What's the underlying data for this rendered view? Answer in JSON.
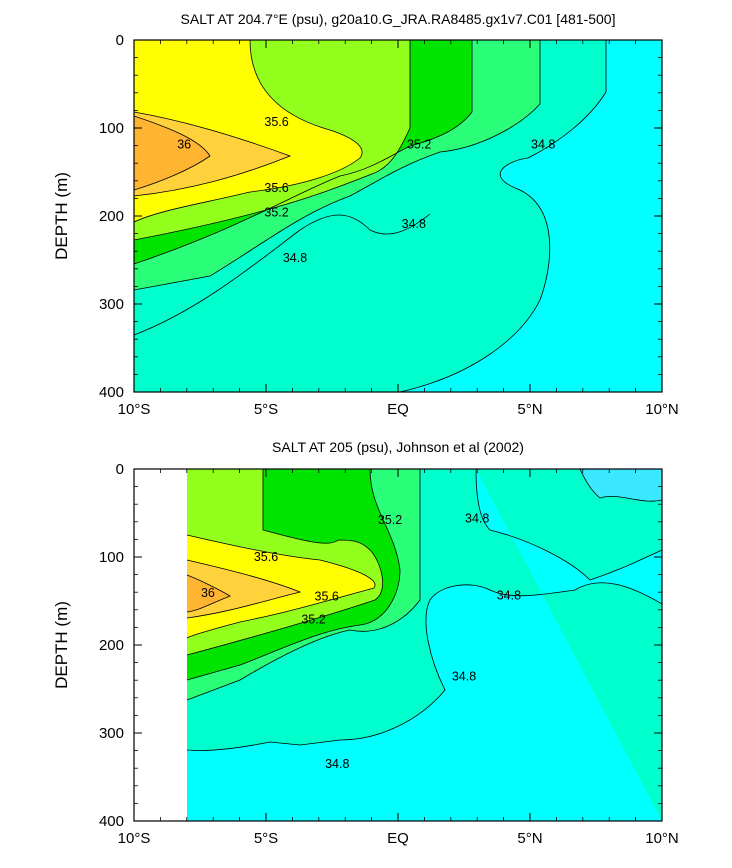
{
  "chart_data": [
    {
      "type": "contour",
      "title": "SALT AT 204.7°E (psu), g20a10.G_JRA.RA8485.gx1v7.C01 [481-500]",
      "ylabel": "DEPTH (m)",
      "xlim": [
        -10,
        10
      ],
      "ylim": [
        400,
        0
      ],
      "xticks": [
        "10°S",
        "5°S",
        "EQ",
        "5°N",
        "10°N"
      ],
      "yticks": [
        "0",
        "100",
        "200",
        "300",
        "400"
      ],
      "contour_labels": [
        {
          "text": "35.6",
          "x": -4.6,
          "y": 93
        },
        {
          "text": "36",
          "x": -8.1,
          "y": 119
        },
        {
          "text": "35.6",
          "x": -4.6,
          "y": 168
        },
        {
          "text": "35.2",
          "x": -4.6,
          "y": 196
        },
        {
          "text": "35.2",
          "x": 0.8,
          "y": 119
        },
        {
          "text": "34.8",
          "x": 5.5,
          "y": 119
        },
        {
          "text": "34.8",
          "x": 0.6,
          "y": 209
        },
        {
          "text": "34.8",
          "x": -3.9,
          "y": 248
        }
      ]
    },
    {
      "type": "contour",
      "title": "SALT AT 205 (psu), Johnson et al (2002)",
      "ylabel": "DEPTH (m)",
      "xlim": [
        -10,
        10
      ],
      "ylim": [
        400,
        0
      ],
      "xticks": [
        "10°S",
        "5°S",
        "EQ",
        "5°N",
        "10°N"
      ],
      "yticks": [
        "0",
        "100",
        "200",
        "300",
        "400"
      ],
      "contour_labels": [
        {
          "text": "35.2",
          "x": -0.3,
          "y": 58
        },
        {
          "text": "34.8",
          "x": 3.0,
          "y": 56
        },
        {
          "text": "35.6",
          "x": -5.0,
          "y": 100
        },
        {
          "text": "36",
          "x": -7.2,
          "y": 141
        },
        {
          "text": "35.6",
          "x": -2.7,
          "y": 145
        },
        {
          "text": "34.8",
          "x": 4.2,
          "y": 144
        },
        {
          "text": "35.2",
          "x": -3.2,
          "y": 171
        },
        {
          "text": "34.8",
          "x": 2.5,
          "y": 236
        },
        {
          "text": "34.8",
          "x": -2.3,
          "y": 335
        }
      ]
    }
  ],
  "palette": {
    "s_lt_34_4": "#3ae8ff",
    "s_34_4_34_8": "#00ffff",
    "s_34_8_35_0": "#00ffcc",
    "s_35_0_35_2": "#2bff7a",
    "s_35_2_35_4": "#00e400",
    "s_35_4_35_6": "#93ff1c",
    "s_35_6_35_8": "#ffff00",
    "s_35_8_36_0": "#ffd23c",
    "s_gt_36_0": "#ffb432"
  }
}
